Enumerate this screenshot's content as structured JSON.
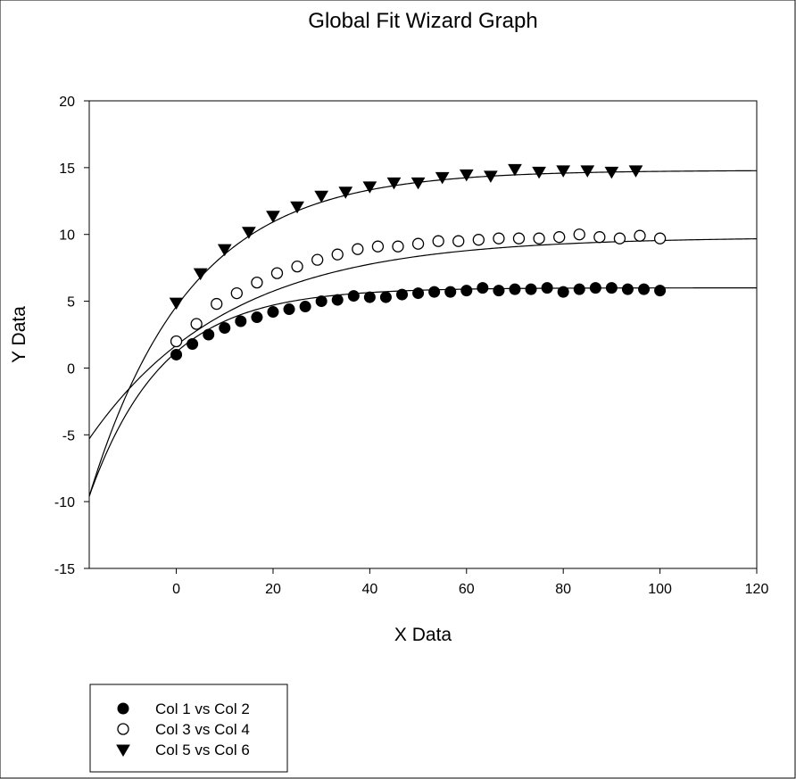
{
  "chart_data": {
    "type": "scatter",
    "title": "Global Fit Wizard Graph",
    "xlabel": "X Data",
    "ylabel": "Y Data",
    "xlim": [
      -18,
      120
    ],
    "ylim": [
      -15,
      20
    ],
    "xticks": [
      0,
      20,
      40,
      60,
      80,
      100,
      120
    ],
    "yticks": [
      -15,
      -10,
      -5,
      0,
      5,
      10,
      15,
      20
    ],
    "grid": false,
    "legend_position": "bottom-left",
    "series": [
      {
        "name": "Col 1 vs Col 2",
        "marker": "filled-circle",
        "x": [
          0,
          3.33,
          6.67,
          10,
          13.33,
          16.67,
          20,
          23.33,
          26.67,
          30,
          33.33,
          36.67,
          40,
          43.33,
          46.67,
          50,
          53.33,
          56.67,
          60,
          63.33,
          66.67,
          70,
          73.33,
          76.67,
          80,
          83.33,
          86.67,
          90,
          93.33,
          96.67,
          100
        ],
        "y": [
          1.0,
          1.8,
          2.5,
          3.0,
          3.5,
          3.8,
          4.2,
          4.4,
          4.6,
          5.0,
          5.1,
          5.4,
          5.3,
          5.3,
          5.5,
          5.6,
          5.7,
          5.7,
          5.8,
          6.0,
          5.8,
          5.9,
          5.9,
          6.0,
          5.7,
          5.9,
          6.0,
          6.0,
          5.9,
          5.9,
          5.8
        ],
        "fit_curve": "1-exp",
        "fit_asymptote": 6.0,
        "fit_at_xmin": -9.6,
        "fit_at_x0": 1.2
      },
      {
        "name": "Col 3 vs Col 4",
        "marker": "open-circle",
        "x": [
          0,
          4.17,
          8.33,
          12.5,
          16.67,
          20.83,
          25,
          29.17,
          33.33,
          37.5,
          41.67,
          45.83,
          50,
          54.17,
          58.33,
          62.5,
          66.67,
          70.83,
          75,
          79.17,
          83.33,
          87.5,
          91.67,
          95.83,
          100
        ],
        "y": [
          2.0,
          3.3,
          4.8,
          5.6,
          6.4,
          7.1,
          7.6,
          8.1,
          8.5,
          8.9,
          9.1,
          9.1,
          9.3,
          9.5,
          9.5,
          9.6,
          9.7,
          9.7,
          9.7,
          9.8,
          10.0,
          9.8,
          9.7,
          9.9,
          9.7
        ],
        "fit_curve": "1-exp",
        "fit_asymptote": 9.8,
        "fit_at_xmin": -5.3,
        "fit_at_x0": 1.7
      },
      {
        "name": "Col 5 vs Col 6",
        "marker": "filled-triangle-down",
        "x": [
          0,
          5,
          10,
          15,
          20,
          25,
          30,
          35,
          40,
          45,
          50,
          55,
          60,
          65,
          70,
          75,
          80,
          85,
          90,
          95
        ],
        "y": [
          4.9,
          7.1,
          8.9,
          10.2,
          11.4,
          12.1,
          12.9,
          13.2,
          13.6,
          13.9,
          13.9,
          14.3,
          14.5,
          14.4,
          14.9,
          14.7,
          14.8,
          14.8,
          14.7,
          14.8
        ],
        "fit_curve": "1-exp",
        "fit_asymptote": 14.8,
        "fit_at_xmin": -9.6,
        "fit_at_x0": 4.6
      }
    ]
  }
}
